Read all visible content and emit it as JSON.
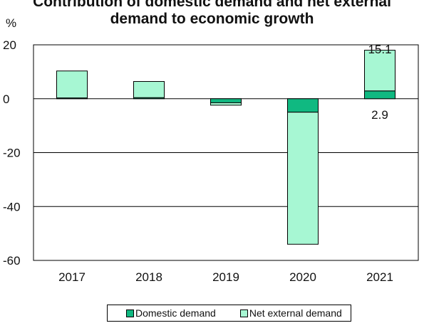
{
  "title_line1": "Contribution of domestic demand and net external",
  "title_line2": "demand to economic growth",
  "unit": "%",
  "colors": {
    "domestic": "#10b981",
    "external": "#a7f7d3",
    "outline": "#000000"
  },
  "chart_data": {
    "type": "bar",
    "stacked": true,
    "title": "Contribution of domestic demand and net external demand to economic growth",
    "ylabel": "%",
    "ylim": [
      -60,
      20
    ],
    "yticks": [
      20,
      0,
      -20,
      -40,
      -60
    ],
    "grid": true,
    "legend_position": "bottom",
    "categories": [
      "2017",
      "2018",
      "2019",
      "2020",
      "2021"
    ],
    "series": [
      {
        "name": "Domestic demand",
        "color": "#10b981",
        "values": [
          0.3,
          0.4,
          -1.5,
          -5,
          2.9
        ]
      },
      {
        "name": "Net external demand",
        "color": "#a7f7d3",
        "values": [
          10,
          6,
          -0.9,
          -49,
          15.1
        ]
      }
    ],
    "annotations": [
      {
        "category": "2021",
        "text": "15.1"
      },
      {
        "category": "2021",
        "text": "2.9"
      }
    ]
  }
}
